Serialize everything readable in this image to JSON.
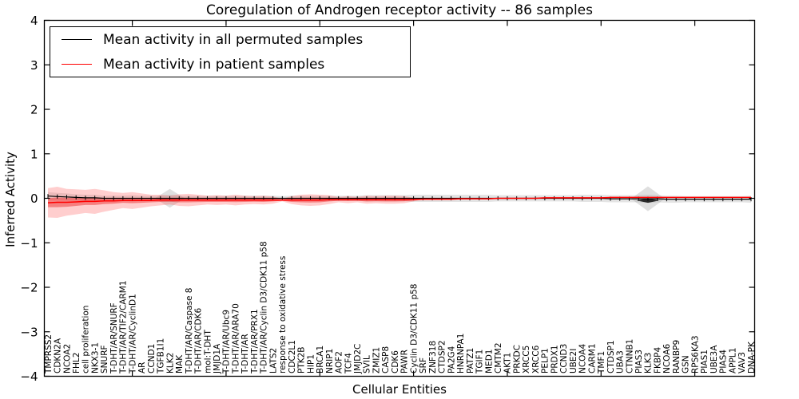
{
  "chart_data": {
    "type": "line",
    "title": "Coregulation of Androgen receptor activity -- 86 samples",
    "xlabel": "Cellular Entities",
    "ylabel": "Inferred Activity",
    "ylim": [
      -4,
      4
    ],
    "ytick_labels": [
      "4",
      "3",
      "2",
      "1",
      "0",
      "−1",
      "−2",
      "−3",
      "−4"
    ],
    "ytick_values": [
      4,
      3,
      2,
      1,
      0,
      -1,
      -2,
      -3,
      -4
    ],
    "x_major_tick_indices": [
      9,
      19,
      29,
      39,
      49,
      59,
      69
    ],
    "grid": false,
    "legend": {
      "position": "upper left",
      "entries": [
        {
          "label": "Mean activity in all permuted samples",
          "color": "#000000"
        },
        {
          "label": "Mean activity in patient samples",
          "color": "#ff0000"
        }
      ]
    },
    "categories": [
      "TMPRSS2",
      "CDKN2A",
      "NCOA2",
      "FHL2",
      "cell proliferation",
      "NKX3-1",
      "SNURF",
      "T-DHT/AR/SNURF",
      "T-DHT/AR/TIF2/CARM1",
      "T-DHT/AR/CyclinD1",
      "AR",
      "CCND1",
      "TGFB1I1",
      "KLK2",
      "MAK",
      "T-DHT/AR/Caspase 8",
      "T-DHT/AR/CDK6",
      "mol:T-DHT",
      "JMJD1A",
      "T-DHT/AR/Ubc9",
      "T-DHT/AR/ARA70",
      "T-DHT/AR",
      "T-DHT/AR/PRX1",
      "T-DHT/AR/Cyclin D3/CDK11 p58",
      "LATS2",
      "response to oxidative stress",
      "CDC2L1",
      "PTK2B",
      "HIP1",
      "BRCA1",
      "NRIP1",
      "AOF2",
      "TCF4",
      "JMJD2C",
      "SVIL",
      "ZMIZ1",
      "CASP8",
      "CDK6",
      "PAWR",
      "Cyclin D3/CDK11 p58",
      "SRF",
      "ZNF318",
      "CTDSP2",
      "PA2G4",
      "HNRNPA1",
      "PATZ1",
      "TGIF1",
      "MED1",
      "CMTM2",
      "AKT1",
      "PRKDC",
      "XRCC5",
      "XRCC6",
      "PELP1",
      "PRDX1",
      "CCND3",
      "UBE2I",
      "NCOA4",
      "CARM1",
      "TMF1",
      "CTDSP1",
      "UBA3",
      "CTNNB1",
      "PIAS3",
      "KLK3",
      "FKBP4",
      "NCOA6",
      "RANBP9",
      "GSN",
      "RPS6KA3",
      "PIAS1",
      "UBE3A",
      "PIAS4",
      "APPL1",
      "VAV3",
      "DNA-PK"
    ],
    "series": [
      {
        "name": "Mean activity in all permuted samples",
        "color": "#000000",
        "values": [
          0.05,
          0.04,
          0.03,
          0.02,
          0.01,
          0.01,
          0,
          0,
          0,
          0,
          0,
          0,
          0,
          0,
          0,
          0,
          0,
          0,
          0,
          0,
          0,
          0,
          0,
          0,
          0,
          0,
          0,
          0,
          0,
          0,
          0,
          0,
          0,
          0,
          0,
          0,
          0,
          0,
          0,
          0,
          0,
          0,
          0,
          0,
          0,
          0,
          0,
          0,
          0,
          0,
          0,
          0,
          0,
          0,
          0,
          0,
          0,
          0,
          0,
          0,
          -0.01,
          -0.01,
          -0.01,
          -0.01,
          -0.01,
          -0.01,
          -0.02,
          -0.02,
          -0.02,
          -0.02,
          -0.02,
          -0.02,
          -0.02,
          -0.02,
          -0.02,
          -0.02
        ],
        "band_half_width": [
          0.09,
          0.08,
          0.08,
          0.07,
          0.07,
          0.07,
          0.06,
          0.06,
          0.06,
          0.07,
          0.06,
          0.06,
          0.06,
          0.08,
          0.06,
          0.06,
          0.06,
          0.06,
          0.06,
          0.06,
          0.06,
          0.06,
          0.06,
          0.06,
          0.06,
          0.05,
          0.06,
          0.06,
          0.06,
          0.06,
          0.06,
          0.06,
          0.06,
          0.06,
          0.07,
          0.07,
          0.07,
          0.07,
          0.07,
          0.08,
          0.08,
          0.08,
          0.08,
          0.08,
          0.08,
          0.08,
          0.08,
          0.08,
          0.07,
          0.07,
          0.07,
          0.07,
          0.07,
          0.07,
          0.07,
          0.07,
          0.07,
          0.08,
          0.08,
          0.08,
          0.08,
          0.08,
          0.08,
          0.08,
          0.09,
          0.08,
          0.08,
          0.08,
          0.07,
          0.07,
          0.07,
          0.07,
          0.07,
          0.07,
          0.07,
          0.08
        ],
        "band_color": "rgba(130,130,130,0.22)"
      },
      {
        "name": "Mean activity in patient samples",
        "color": "#ff0000",
        "values": [
          -0.1,
          -0.09,
          -0.09,
          -0.08,
          -0.07,
          -0.07,
          -0.06,
          -0.06,
          -0.05,
          -0.05,
          -0.05,
          -0.05,
          -0.04,
          -0.04,
          -0.04,
          -0.04,
          -0.04,
          -0.04,
          -0.04,
          -0.04,
          -0.04,
          -0.04,
          -0.04,
          -0.04,
          -0.04,
          -0.04,
          -0.04,
          -0.04,
          -0.04,
          -0.04,
          -0.03,
          -0.03,
          -0.03,
          -0.03,
          -0.03,
          -0.03,
          -0.03,
          -0.03,
          -0.03,
          -0.03,
          -0.02,
          -0.02,
          -0.02,
          -0.02,
          -0.01,
          -0.01,
          -0.01,
          -0.01,
          0,
          0,
          0,
          0,
          0,
          0.01,
          0.01,
          0.01,
          0.01,
          0.01,
          0.01,
          0.01,
          0.02,
          0.02,
          0.02,
          0.02,
          0.02,
          0.02,
          0.02,
          0.02,
          0.02,
          0.02,
          0.02,
          0.02,
          0.02,
          0.02,
          0.02,
          0.02
        ],
        "outer_band_half_width": [
          0.33,
          0.35,
          0.3,
          0.28,
          0.26,
          0.28,
          0.24,
          0.2,
          0.17,
          0.19,
          0.16,
          0.13,
          0.12,
          0.1,
          0.13,
          0.14,
          0.12,
          0.1,
          0.11,
          0.1,
          0.12,
          0.1,
          0.09,
          0.1,
          0.08,
          0.03,
          0.09,
          0.12,
          0.13,
          0.12,
          0.1,
          0.06,
          0.08,
          0.06,
          0.09,
          0.08,
          0.09,
          0.09,
          0.08,
          0.04,
          0,
          0,
          0,
          0,
          0,
          0,
          0,
          0,
          0,
          0,
          0,
          0,
          0,
          0,
          0,
          0,
          0,
          0,
          0,
          0,
          0,
          0,
          0,
          0,
          0,
          0,
          0,
          0,
          0,
          0,
          0,
          0,
          0,
          0,
          0,
          0
        ],
        "inner_band_half_width": [
          0.1,
          0.11,
          0.1,
          0.09,
          0.08,
          0.08,
          0.07,
          0.06,
          0.05,
          0.06,
          0.05,
          0.04,
          0.04,
          0.035,
          0.05,
          0.05,
          0.045,
          0.04,
          0.04,
          0.04,
          0.045,
          0.04,
          0.035,
          0.04,
          0.03,
          0.015,
          0.04,
          0.05,
          0.055,
          0.05,
          0.04,
          0.025,
          0.03,
          0.025,
          0.04,
          0.035,
          0.04,
          0.04,
          0.035,
          0.02,
          0,
          0,
          0,
          0,
          0,
          0,
          0,
          0,
          0,
          0,
          0,
          0,
          0,
          0,
          0,
          0,
          0,
          0,
          0,
          0,
          0,
          0,
          0,
          0,
          0,
          0,
          0,
          0,
          0,
          0,
          0,
          0,
          0,
          0,
          0,
          0
        ],
        "outer_band_color": "rgba(255,60,60,0.25)",
        "inner_band_color": "rgba(235,30,30,0.45)"
      }
    ],
    "diamond_markers": [
      {
        "category": "KLK2",
        "index": 13,
        "center": 0.0,
        "half_height": 0.21,
        "half_width_slots": 1.6,
        "fill": "rgba(150,150,150,0.30)"
      },
      {
        "category": "KLK3",
        "index": 64,
        "center": -0.01,
        "half_height": 0.28,
        "half_width_slots": 1.8,
        "fill": "rgba(150,150,150,0.30)"
      },
      {
        "category": "KLK3",
        "index": 64,
        "center": -0.05,
        "half_height": 0.05,
        "half_width_slots": 1.2,
        "fill": "rgba(0,0,0,0.80)"
      }
    ]
  }
}
